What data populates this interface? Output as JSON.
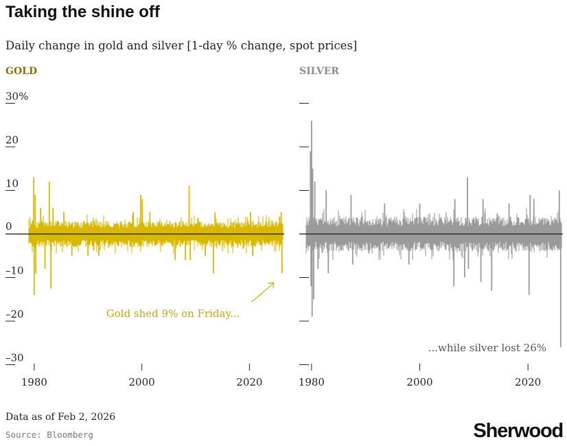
{
  "title": "Taking the shine off",
  "subtitle": "Daily change in gold and silver [1-day % change, spot prices]",
  "footer": {
    "date_note": "Data as of Feb 2, 2026",
    "source": "Source: Bloomberg"
  },
  "brand": "Sherwood",
  "colors": {
    "gold": "#d9b800",
    "silver": "#9a9a9a",
    "zero_line": "#111111",
    "gold_label": "#8a7400",
    "silver_label": "#8c8c8c",
    "gold_annotation": "#c9a600",
    "silver_annotation": "#555555"
  },
  "chart_data": [
    {
      "type": "bar",
      "name": "GOLD",
      "ylabel": "",
      "ylim": [
        -30,
        30
      ],
      "xlim": [
        1979,
        2026.2
      ],
      "y_ticks": [
        30,
        20,
        10,
        0,
        -10,
        -20,
        -30
      ],
      "y_tick_labels": [
        "30%",
        "20",
        "10",
        "0",
        "–10",
        "–20",
        "–30"
      ],
      "x_ticks": [
        1980,
        2000,
        2020
      ],
      "x_tick_labels": [
        "1980",
        "2000",
        "2020"
      ],
      "typical_daily_range": [
        -3,
        3
      ],
      "notable_moves": [
        {
          "x": 1979.9,
          "y": 13
        },
        {
          "x": 1980.0,
          "y": -14
        },
        {
          "x": 1980.2,
          "y": 9
        },
        {
          "x": 1980.3,
          "y": -9
        },
        {
          "x": 1981.2,
          "y": 6
        },
        {
          "x": 1982.0,
          "y": -8
        },
        {
          "x": 1982.8,
          "y": 12
        },
        {
          "x": 1983.1,
          "y": -12.5
        },
        {
          "x": 1983.5,
          "y": 6
        },
        {
          "x": 1985.5,
          "y": 5
        },
        {
          "x": 1987.0,
          "y": -5
        },
        {
          "x": 1990.0,
          "y": -5
        },
        {
          "x": 1992.0,
          "y": -5
        },
        {
          "x": 1998.4,
          "y": 5
        },
        {
          "x": 1999.8,
          "y": 9
        },
        {
          "x": 2000.1,
          "y": 8
        },
        {
          "x": 2001.5,
          "y": 5
        },
        {
          "x": 2006.2,
          "y": -6
        },
        {
          "x": 2008.1,
          "y": -6
        },
        {
          "x": 2008.8,
          "y": 11
        },
        {
          "x": 2009.0,
          "y": -6
        },
        {
          "x": 2011.8,
          "y": -5
        },
        {
          "x": 2013.3,
          "y": -9
        },
        {
          "x": 2013.6,
          "y": 5
        },
        {
          "x": 2020.2,
          "y": 5
        },
        {
          "x": 2020.6,
          "y": -5
        },
        {
          "x": 2025.6,
          "y": 4
        },
        {
          "x": 2025.9,
          "y": 5
        },
        {
          "x": 2026.05,
          "y": -9
        }
      ],
      "annotation": {
        "text": "Gold shed 9% on Friday...",
        "points_to": {
          "x": 2026.05,
          "y": -9
        }
      }
    },
    {
      "type": "bar",
      "name": "SILVER",
      "ylabel": "",
      "ylim": [
        -30,
        30
      ],
      "xlim": [
        1979,
        2026.2
      ],
      "y_ticks": [
        30,
        20,
        10,
        0,
        -10,
        -20,
        -30
      ],
      "y_tick_labels": [
        "",
        "",
        "",
        "",
        "",
        "",
        ""
      ],
      "x_ticks": [
        1980,
        2000,
        2020
      ],
      "x_tick_labels": [
        "1980",
        "2000",
        "2020"
      ],
      "typical_daily_range": [
        -4,
        4
      ],
      "notable_moves": [
        {
          "x": 1979.8,
          "y": 19
        },
        {
          "x": 1979.9,
          "y": -12
        },
        {
          "x": 1980.0,
          "y": 26
        },
        {
          "x": 1980.1,
          "y": -19
        },
        {
          "x": 1980.2,
          "y": 15
        },
        {
          "x": 1980.4,
          "y": -15
        },
        {
          "x": 1980.6,
          "y": 12
        },
        {
          "x": 1981.2,
          "y": -8
        },
        {
          "x": 1982.7,
          "y": 10
        },
        {
          "x": 1983.1,
          "y": -9
        },
        {
          "x": 1987.3,
          "y": 9
        },
        {
          "x": 1987.6,
          "y": -7
        },
        {
          "x": 1993.5,
          "y": 7
        },
        {
          "x": 1998.0,
          "y": -7
        },
        {
          "x": 2000.0,
          "y": 7
        },
        {
          "x": 2006.3,
          "y": -12
        },
        {
          "x": 2006.5,
          "y": 8
        },
        {
          "x": 2008.3,
          "y": -10
        },
        {
          "x": 2008.8,
          "y": 13
        },
        {
          "x": 2009.0,
          "y": -8
        },
        {
          "x": 2011.3,
          "y": -11
        },
        {
          "x": 2011.7,
          "y": 8
        },
        {
          "x": 2013.3,
          "y": -13
        },
        {
          "x": 2016.5,
          "y": 7
        },
        {
          "x": 2020.2,
          "y": -14
        },
        {
          "x": 2020.4,
          "y": 9
        },
        {
          "x": 2021.1,
          "y": 8
        },
        {
          "x": 2025.8,
          "y": 10
        },
        {
          "x": 2026.05,
          "y": -26
        }
      ],
      "annotation": {
        "text": "...while silver lost 26%",
        "points_to": {
          "x": 2026.05,
          "y": -26
        }
      }
    }
  ]
}
